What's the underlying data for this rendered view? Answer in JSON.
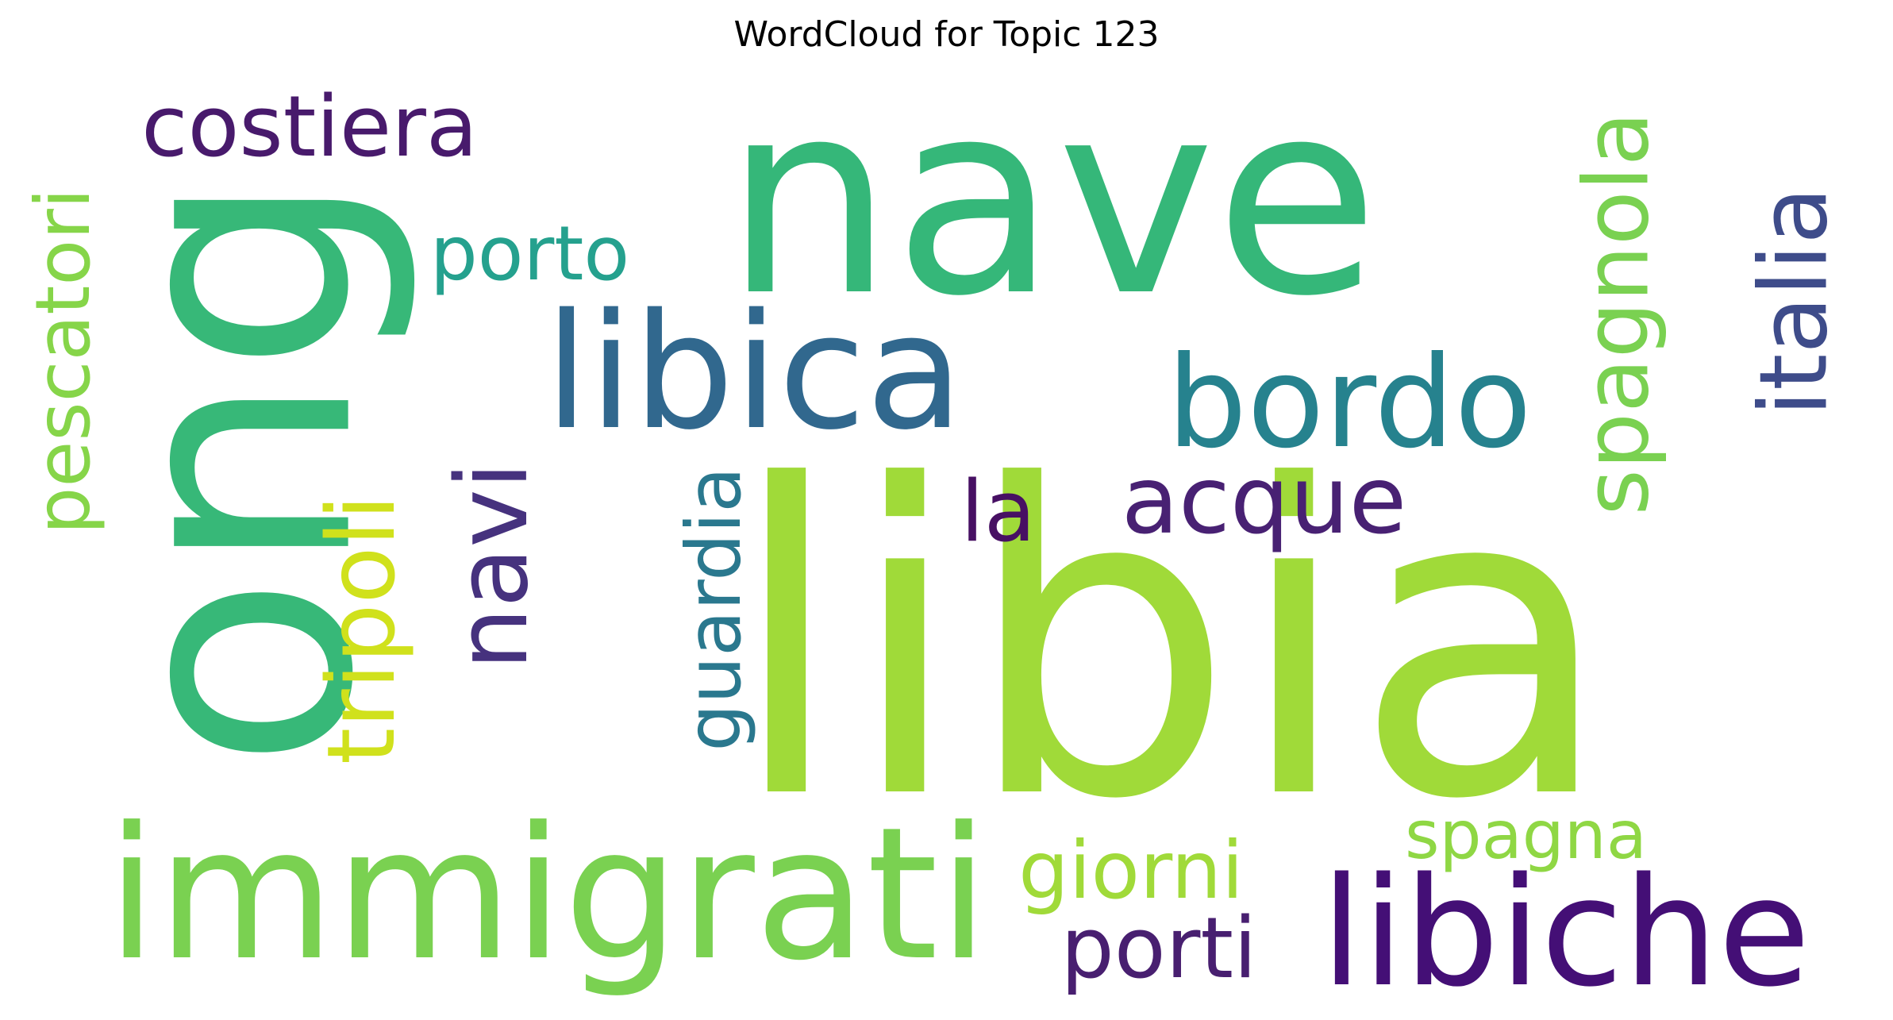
{
  "title": "WordCloud for Topic 123",
  "words": [
    {
      "text": "libia",
      "color": "#a0da39",
      "rotated": false
    },
    {
      "text": "nave",
      "color": "#35b779",
      "rotated": false
    },
    {
      "text": "ong",
      "color": "#37b878",
      "rotated": true
    },
    {
      "text": "immigrati",
      "color": "#7ad151",
      "rotated": false
    },
    {
      "text": "libica",
      "color": "#31688e",
      "rotated": false
    },
    {
      "text": "libiche",
      "color": "#440f76",
      "rotated": false
    },
    {
      "text": "bordo",
      "color": "#26828e",
      "rotated": false
    },
    {
      "text": "costiera",
      "color": "#481a6c",
      "rotated": false
    },
    {
      "text": "spagnola",
      "color": "#7ad151",
      "rotated": true
    },
    {
      "text": "italia",
      "color": "#3e4c8a",
      "rotated": true
    },
    {
      "text": "acque",
      "color": "#482173",
      "rotated": false
    },
    {
      "text": "navi",
      "color": "#46327e",
      "rotated": true
    },
    {
      "text": "tripoli",
      "color": "#d0e11c",
      "rotated": true
    },
    {
      "text": "la",
      "color": "#471063",
      "rotated": false
    },
    {
      "text": "porto",
      "color": "#25a18e",
      "rotated": false
    },
    {
      "text": "pescatori",
      "color": "#86d549",
      "rotated": true
    },
    {
      "text": "guardia",
      "color": "#2a788e",
      "rotated": true
    },
    {
      "text": "giorni",
      "color": "#a0da39",
      "rotated": false
    },
    {
      "text": "spagna",
      "color": "#8fd744",
      "rotated": false
    },
    {
      "text": "porti",
      "color": "#481f70",
      "rotated": false
    }
  ]
}
